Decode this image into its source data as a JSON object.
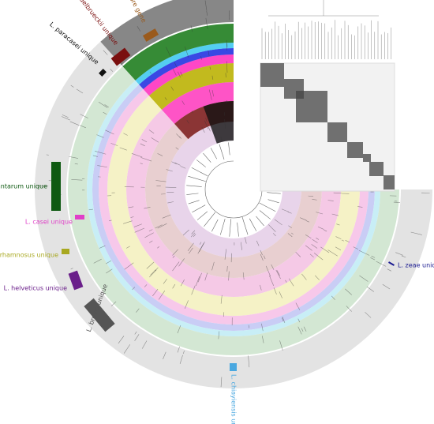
{
  "labels": [
    {
      "text": "core gene",
      "color": "#9a5a1c"
    },
    {
      "text": "L. delbrueckii unique",
      "color": "#7a0f0f"
    },
    {
      "text": "L. paracasei unique",
      "color": "#111111"
    },
    {
      "text": "L. plantarum unique",
      "color": "#0f5a12"
    },
    {
      "text": "L. casei unique",
      "color": "#e040c8"
    },
    {
      "text": "L. rhamnosus unique",
      "color": "#a8a820"
    },
    {
      "text": "L. helveticus unique",
      "color": "#6a1f8a"
    },
    {
      "text": "L. brevis unique",
      "color": "#555555"
    },
    {
      "text": "L. chiayiensis unique",
      "color": "#4aa8e0"
    },
    {
      "text": "L. zeae unique",
      "color": "#1a1a90"
    }
  ]
}
